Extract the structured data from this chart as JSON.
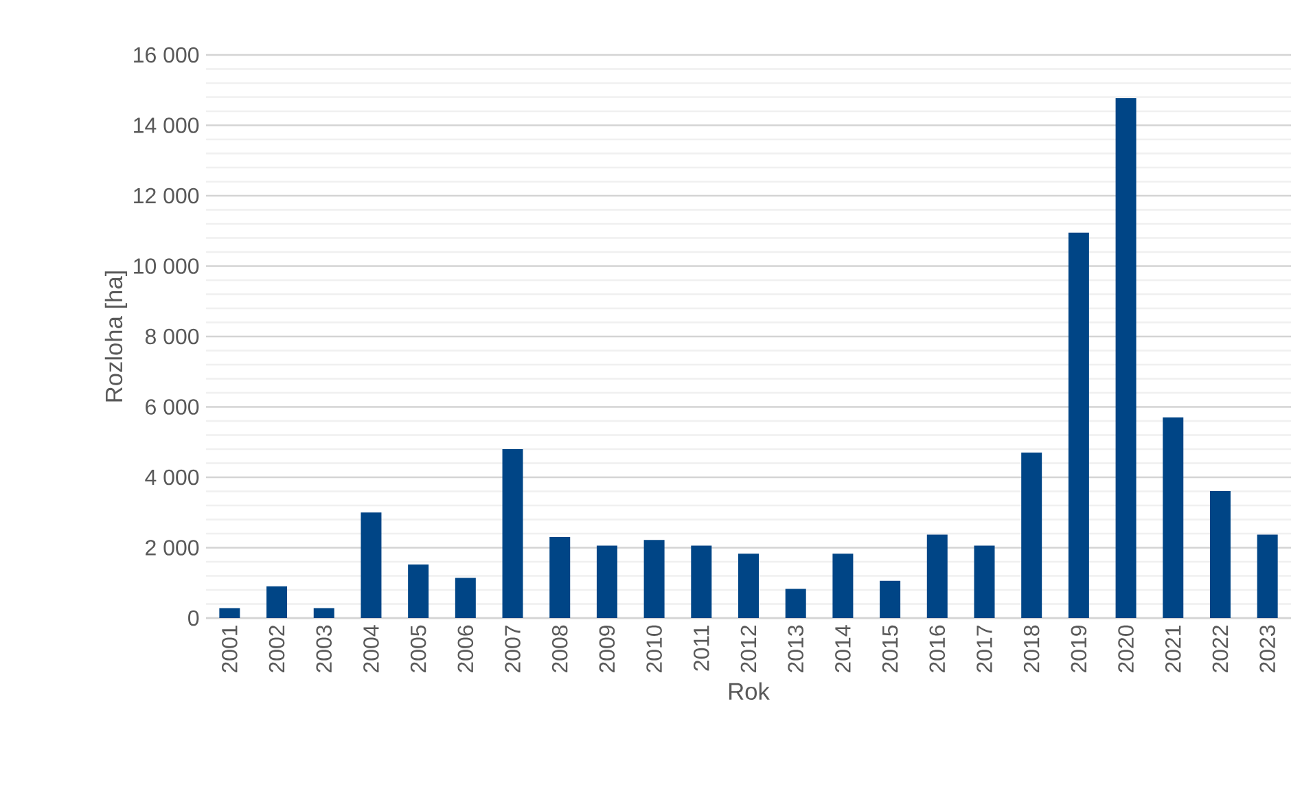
{
  "chart_data": {
    "type": "bar",
    "xlabel": "Rok",
    "ylabel": "Rozloha [ha]",
    "categories": [
      "2001",
      "2002",
      "2003",
      "2004",
      "2005",
      "2006",
      "2007",
      "2008",
      "2009",
      "2010",
      "2011",
      "2012",
      "2013",
      "2014",
      "2015",
      "2016",
      "2017",
      "2018",
      "2019",
      "2020",
      "2021",
      "2022",
      "2023"
    ],
    "values": [
      280,
      900,
      280,
      3000,
      1520,
      1140,
      4800,
      2300,
      2060,
      2220,
      2060,
      1830,
      830,
      1830,
      1060,
      2370,
      2060,
      4700,
      10950,
      14770,
      5700,
      3610,
      2370
    ],
    "color": "#004586",
    "ylim": [
      0,
      16000
    ],
    "yticks": [
      {
        "value": 0,
        "label": "0"
      },
      {
        "value": 2000,
        "label": "2 000"
      },
      {
        "value": 4000,
        "label": "4 000"
      },
      {
        "value": 6000,
        "label": "6 000"
      },
      {
        "value": 8000,
        "label": "8 000"
      },
      {
        "value": 10000,
        "label": "10 000"
      },
      {
        "value": 12000,
        "label": "12 000"
      },
      {
        "value": 14000,
        "label": "14 000"
      },
      {
        "value": 16000,
        "label": "16 000"
      }
    ],
    "grid": "y"
  }
}
